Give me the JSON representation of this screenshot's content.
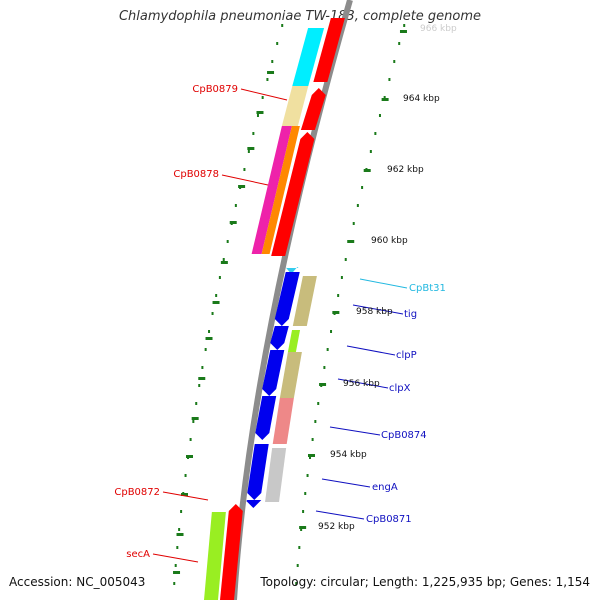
{
  "title": "Chlamydophila pneumoniae TW-183, complete genome",
  "footer": {
    "accession": "Accession: NC_005043",
    "summary": "Topology: circular; Length: 1,225,935 bp; Genes: 1,154"
  },
  "scale_ticks": [
    {
      "label": "966 kbp",
      "faded": true
    },
    {
      "label": "964 kbp"
    },
    {
      "label": "962 kbp"
    },
    {
      "label": "960 kbp"
    },
    {
      "label": "958 kbp"
    },
    {
      "label": "956 kbp"
    },
    {
      "label": "954 kbp"
    },
    {
      "label": "952 kbp"
    }
  ],
  "gene_labels_left": [
    {
      "text": "CpB0879",
      "color": "#e00000"
    },
    {
      "text": "CpB0878",
      "color": "#e00000"
    },
    {
      "text": "CpB0872",
      "color": "#e00000"
    },
    {
      "text": "secA",
      "color": "#e00000"
    }
  ],
  "gene_labels_right": [
    {
      "text": "CpBt31",
      "color": "#22b8e0"
    },
    {
      "text": "tig",
      "color": "#1010c0"
    },
    {
      "text": "clpP",
      "color": "#1010c0"
    },
    {
      "text": "clpX",
      "color": "#1010c0"
    },
    {
      "text": "CpB0874",
      "color": "#1010c0"
    },
    {
      "text": "engA",
      "color": "#1010c0"
    },
    {
      "text": "CpB0871",
      "color": "#1010c0"
    }
  ],
  "colors": {
    "backbone": "#8c8c8c",
    "reverse_cds": "#ff0000",
    "forward_cds": "#0000ee",
    "trna": "#33ccee",
    "tick": "#1a7a1a",
    "cyan_feature": "#00eeff",
    "khaki_feature": "#c8bc7c",
    "wheat_feature": "#f0e0a0",
    "magenta_feature": "#ee22aa",
    "orange_feature": "#ff8800",
    "green_feature": "#99ee22",
    "pink_feature": "#ee8888",
    "gray_feature": "#c8c8c8"
  }
}
